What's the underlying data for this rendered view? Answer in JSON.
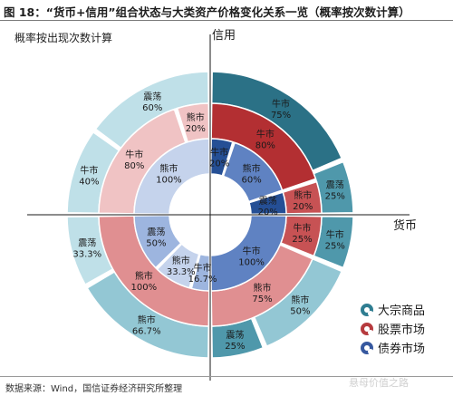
{
  "header": {
    "title": "图 18：“货币+信用”组合状态与大类资产价格变化关系一览（概率按次数计算）",
    "subtitle": "概率按出现次数计算"
  },
  "footer": {
    "source": "数据来源：Wind，国信证券经济研究所整理",
    "watermark": "悬母价值之路"
  },
  "colors": {
    "commodity": "#2f7d91",
    "stock": "#b63a3e",
    "bond": "#36589f"
  },
  "chart_data": {
    "type": "nested-donut",
    "axes": {
      "x_label": "货币",
      "y_label": "信用"
    },
    "quadrants": [
      "top-right",
      "bottom-right",
      "bottom-left",
      "top-left"
    ],
    "rings": [
      {
        "name": "大宗商品",
        "segments": [
          {
            "quadrant": "top-right",
            "label": "牛市",
            "value": "75%"
          },
          {
            "quadrant": "top-right",
            "label": "震荡",
            "value": "25%"
          },
          {
            "quadrant": "bottom-right",
            "label": "牛市",
            "value": "25%"
          },
          {
            "quadrant": "bottom-right",
            "label": "熊市",
            "value": "50%"
          },
          {
            "quadrant": "bottom-right",
            "label": "震荡",
            "value": "25%"
          },
          {
            "quadrant": "bottom-left",
            "label": "熊市",
            "value": "66.7%"
          },
          {
            "quadrant": "bottom-left",
            "label": "震荡",
            "value": "33.3%"
          },
          {
            "quadrant": "top-left",
            "label": "牛市",
            "value": "40%"
          },
          {
            "quadrant": "top-left",
            "label": "震荡",
            "value": "60%"
          }
        ]
      },
      {
        "name": "股票市场",
        "segments": [
          {
            "quadrant": "top-right",
            "label": "牛市",
            "value": "80%"
          },
          {
            "quadrant": "top-right",
            "label": "熊市",
            "value": "20%"
          },
          {
            "quadrant": "bottom-right",
            "label": "牛市",
            "value": "25%"
          },
          {
            "quadrant": "bottom-right",
            "label": "熊市",
            "value": "75%"
          },
          {
            "quadrant": "bottom-left",
            "label": "熊市",
            "value": "100%"
          },
          {
            "quadrant": "top-left",
            "label": "牛市",
            "value": "80%"
          },
          {
            "quadrant": "top-left",
            "label": "熊市",
            "value": "20%"
          }
        ]
      },
      {
        "name": "债券市场",
        "segments": [
          {
            "quadrant": "top-right",
            "label": "牛市",
            "value": "20%"
          },
          {
            "quadrant": "top-right",
            "label": "熊市",
            "value": "60%"
          },
          {
            "quadrant": "top-right",
            "label": "震荡",
            "value": "20%"
          },
          {
            "quadrant": "bottom-right",
            "label": "牛市",
            "value": "100%"
          },
          {
            "quadrant": "bottom-left",
            "label": "牛市",
            "value": "16.7%"
          },
          {
            "quadrant": "bottom-left",
            "label": "熊市",
            "value": "33.3%"
          },
          {
            "quadrant": "bottom-left",
            "label": "震荡",
            "value": "50%"
          },
          {
            "quadrant": "top-left",
            "label": "熊市",
            "value": "100%"
          }
        ]
      }
    ],
    "legend": {
      "position": "bottom-right",
      "items": [
        "大宗商品",
        "股票市场",
        "债券市场"
      ]
    }
  }
}
